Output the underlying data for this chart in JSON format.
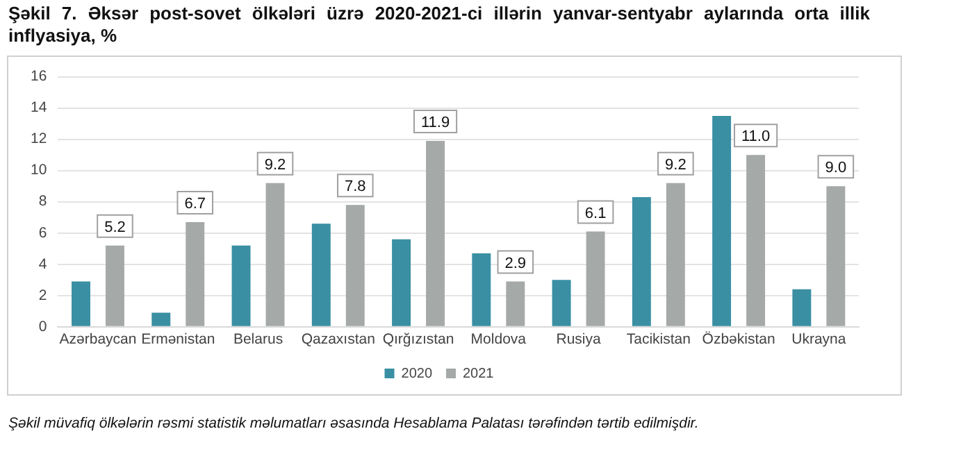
{
  "chart_data": {
    "type": "bar",
    "title": "Şəkil 7. Əksər post-sovet ölkələri üzrə 2020-2021-ci illərin yanvar-sentyabr aylarında orta illik inflyasiya, %",
    "categories": [
      "Azərbaycan",
      "Ermənistan",
      "Belarus",
      "Qazaxıstan",
      "Qırğızıstan",
      "Moldova",
      "Rusiya",
      "Tacikistan",
      "Özbəkistan",
      "Ukrayna"
    ],
    "series": [
      {
        "name": "2020",
        "color": "#3a8fa3",
        "values": [
          2.9,
          0.9,
          5.2,
          6.6,
          5.6,
          4.7,
          3.0,
          8.3,
          13.5,
          2.4
        ]
      },
      {
        "name": "2021",
        "color": "#a5a9a8",
        "values": [
          5.2,
          6.7,
          9.2,
          7.8,
          11.9,
          2.9,
          6.1,
          9.2,
          11.0,
          9.0
        ],
        "value_labels": [
          "5.2",
          "6.7",
          "9.2",
          "7.8",
          "11.9",
          "2.9",
          "6.1",
          "9.2",
          "11.0",
          "9.0"
        ]
      }
    ],
    "ylim": [
      0,
      16
    ],
    "yticks": [
      0,
      2,
      4,
      6,
      8,
      10,
      12,
      14,
      16
    ],
    "grid": "y",
    "legend": "bottom",
    "annotations": [
      "Şəkil müvafiq ölkələrin rəsmi statistik məlumatları əsasında Hesablama Palatası tərəfindən tərtib edilmişdir."
    ]
  }
}
